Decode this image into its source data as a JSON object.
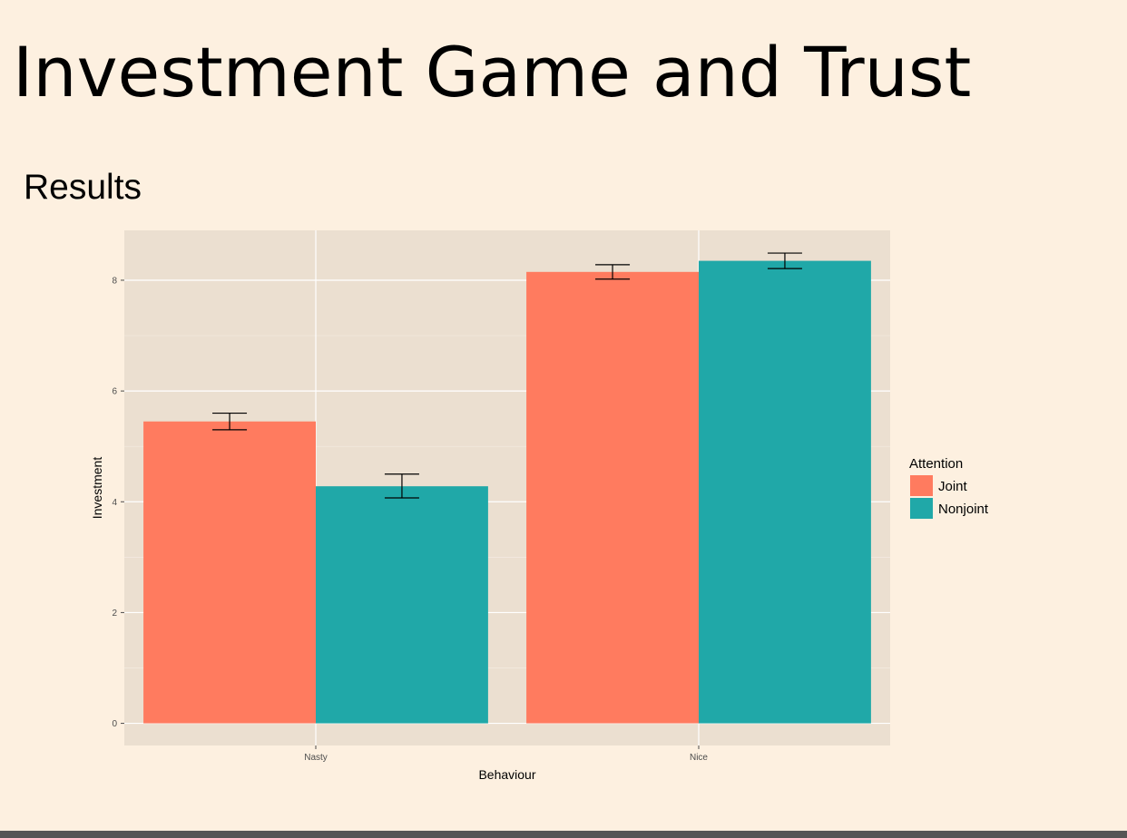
{
  "slide": {
    "title": "Investment Game and Trust",
    "subtitle": "Results"
  },
  "chart_data": {
    "type": "bar",
    "categories": [
      "Nasty",
      "Nice"
    ],
    "series": [
      {
        "name": "Joint",
        "values": [
          5.45,
          8.15
        ],
        "error_low": [
          5.3,
          8.02
        ],
        "error_high": [
          5.6,
          8.28
        ],
        "color": "#ff7b5f"
      },
      {
        "name": "Nonjoint",
        "values": [
          4.28,
          8.35
        ],
        "error_low": [
          4.07,
          8.21
        ],
        "error_high": [
          4.5,
          8.49
        ],
        "color": "#20a8a8"
      }
    ],
    "xlabel": "Behaviour",
    "ylabel": "Investment",
    "ylim": [
      -0.4,
      8.9
    ],
    "yticks": [
      0,
      2,
      4,
      6,
      8
    ],
    "ytick_labels": [
      "0",
      "2",
      "4",
      "6",
      "8"
    ],
    "legend_title": "Attention",
    "legend_position": "right",
    "grid": true,
    "panel_background": "#ebdfd0",
    "grid_color": "#ffffff"
  }
}
